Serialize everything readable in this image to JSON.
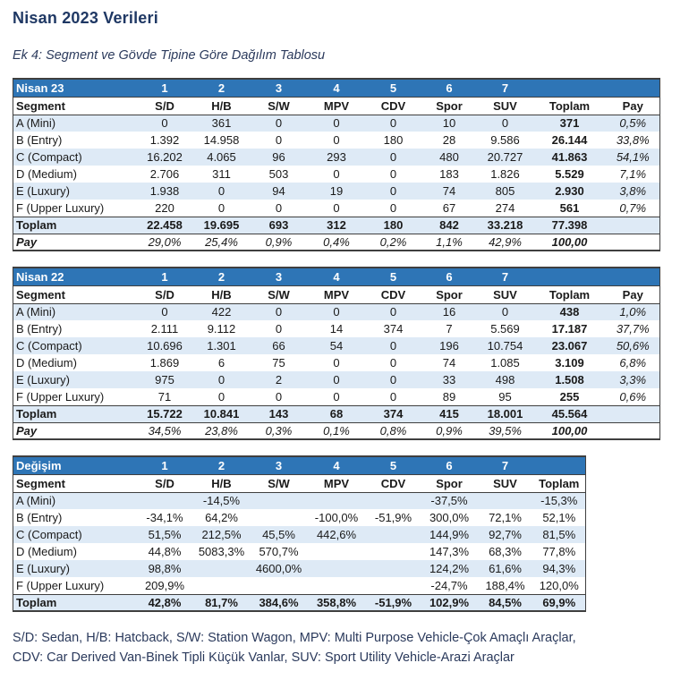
{
  "document": {
    "title": "Nisan 2023 Verileri",
    "subtitle": "Ek 4: Segment ve Gövde Tipine Göre Dağılım Tablosu",
    "footnote": {
      "line1": "S/D: Sedan, H/B: Hatcback, S/W: Station Wagon, MPV: Multi Purpose Vehicle-Çok Amaçlı Araçlar,",
      "line2": "CDV: Car Derived Van-Binek Tipli Küçük Vanlar, SUV: Sport Utility Vehicle-Arazi Araçlar"
    }
  },
  "colors": {
    "header_blue": "#2E75B6",
    "stripe_blue": "#DEEAF6",
    "title_navy": "#1F3864",
    "text_slate": "#2B3A5C",
    "border_dark": "#3F3F3F"
  },
  "tables": [
    {
      "id": "nisan-23",
      "title": "Nisan 23",
      "col_numbers": [
        "1",
        "2",
        "3",
        "4",
        "5",
        "6",
        "7"
      ],
      "columns": [
        "Segment",
        "S/D",
        "H/B",
        "S/W",
        "MPV",
        "CDV",
        "Spor",
        "SUV",
        "Toplam",
        "Pay"
      ],
      "rows": [
        [
          "A (Mini)",
          "0",
          "361",
          "0",
          "0",
          "0",
          "10",
          "0",
          "371",
          "0,5%"
        ],
        [
          "B (Entry)",
          "1.392",
          "14.958",
          "0",
          "0",
          "180",
          "28",
          "9.586",
          "26.144",
          "33,8%"
        ],
        [
          "C (Compact)",
          "16.202",
          "4.065",
          "96",
          "293",
          "0",
          "480",
          "20.727",
          "41.863",
          "54,1%"
        ],
        [
          "D (Medium)",
          "2.706",
          "311",
          "503",
          "0",
          "0",
          "183",
          "1.826",
          "5.529",
          "7,1%"
        ],
        [
          "E (Luxury)",
          "1.938",
          "0",
          "94",
          "19",
          "0",
          "74",
          "805",
          "2.930",
          "3,8%"
        ],
        [
          "F (Upper Luxury)",
          "220",
          "0",
          "0",
          "0",
          "0",
          "67",
          "274",
          "561",
          "0,7%"
        ]
      ],
      "toplam_row": [
        "Toplam",
        "22.458",
        "19.695",
        "693",
        "312",
        "180",
        "842",
        "33.218",
        "77.398",
        ""
      ],
      "pay_row": [
        "Pay",
        "29,0%",
        "25,4%",
        "0,9%",
        "0,4%",
        "0,2%",
        "1,1%",
        "42,9%",
        "100,00",
        ""
      ]
    },
    {
      "id": "nisan-22",
      "title": "Nisan 22",
      "col_numbers": [
        "1",
        "2",
        "3",
        "4",
        "5",
        "6",
        "7"
      ],
      "columns": [
        "Segment",
        "S/D",
        "H/B",
        "S/W",
        "MPV",
        "CDV",
        "Spor",
        "SUV",
        "Toplam",
        "Pay"
      ],
      "rows": [
        [
          "A (Mini)",
          "0",
          "422",
          "0",
          "0",
          "0",
          "16",
          "0",
          "438",
          "1,0%"
        ],
        [
          "B (Entry)",
          "2.111",
          "9.112",
          "0",
          "14",
          "374",
          "7",
          "5.569",
          "17.187",
          "37,7%"
        ],
        [
          "C (Compact)",
          "10.696",
          "1.301",
          "66",
          "54",
          "0",
          "196",
          "10.754",
          "23.067",
          "50,6%"
        ],
        [
          "D (Medium)",
          "1.869",
          "6",
          "75",
          "0",
          "0",
          "74",
          "1.085",
          "3.109",
          "6,8%"
        ],
        [
          "E (Luxury)",
          "975",
          "0",
          "2",
          "0",
          "0",
          "33",
          "498",
          "1.508",
          "3,3%"
        ],
        [
          "F (Upper Luxury)",
          "71",
          "0",
          "0",
          "0",
          "0",
          "89",
          "95",
          "255",
          "0,6%"
        ]
      ],
      "toplam_row": [
        "Toplam",
        "15.722",
        "10.841",
        "143",
        "68",
        "374",
        "415",
        "18.001",
        "45.564",
        ""
      ],
      "pay_row": [
        "Pay",
        "34,5%",
        "23,8%",
        "0,3%",
        "0,1%",
        "0,8%",
        "0,9%",
        "39,5%",
        "100,00",
        ""
      ]
    },
    {
      "id": "degisim",
      "title": "Değişim",
      "col_numbers": [
        "1",
        "2",
        "3",
        "4",
        "5",
        "6",
        "7"
      ],
      "columns": [
        "Segment",
        "S/D",
        "H/B",
        "S/W",
        "MPV",
        "CDV",
        "Spor",
        "SUV",
        "Toplam"
      ],
      "rows": [
        [
          "A (Mini)",
          "",
          "-14,5%",
          "",
          "",
          "",
          "-37,5%",
          "",
          "-15,3%"
        ],
        [
          "B (Entry)",
          "-34,1%",
          "64,2%",
          "",
          "-100,0%",
          "-51,9%",
          "300,0%",
          "72,1%",
          "52,1%"
        ],
        [
          "C (Compact)",
          "51,5%",
          "212,5%",
          "45,5%",
          "442,6%",
          "",
          "144,9%",
          "92,7%",
          "81,5%"
        ],
        [
          "D (Medium)",
          "44,8%",
          "5083,3%",
          "570,7%",
          "",
          "",
          "147,3%",
          "68,3%",
          "77,8%"
        ],
        [
          "E (Luxury)",
          "98,8%",
          "",
          "4600,0%",
          "",
          "",
          "124,2%",
          "61,6%",
          "94,3%"
        ],
        [
          "F (Upper Luxury)",
          "209,9%",
          "",
          "",
          "",
          "",
          "-24,7%",
          "188,4%",
          "120,0%"
        ]
      ],
      "toplam_row": [
        "Toplam",
        "42,8%",
        "81,7%",
        "384,6%",
        "358,8%",
        "-51,9%",
        "102,9%",
        "84,5%",
        "69,9%"
      ],
      "pay_row": null
    }
  ]
}
